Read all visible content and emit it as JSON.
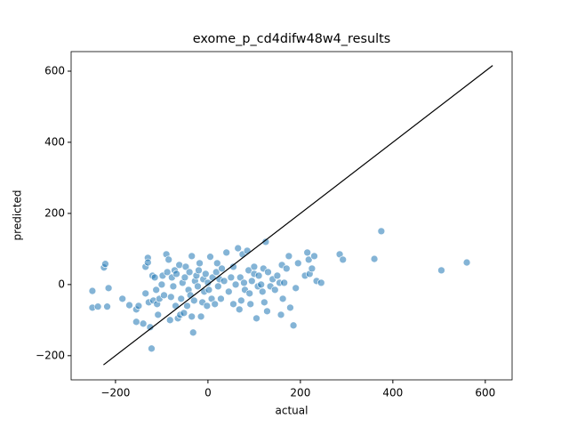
{
  "chart_data": {
    "type": "scatter",
    "title": "exome_p_cd4difw48w4_results",
    "xlabel": "actual",
    "ylabel": "predicted",
    "color": "#1f77b4",
    "x": [
      -250,
      -250,
      -238,
      -225,
      -222,
      -218,
      -215,
      -185,
      -170,
      -155,
      -155,
      -150,
      -140,
      -135,
      -135,
      -130,
      -130,
      -128,
      -125,
      -122,
      -120,
      -118,
      -115,
      -112,
      -110,
      -108,
      -105,
      -100,
      -98,
      -95,
      -90,
      -88,
      -85,
      -82,
      -80,
      -78,
      -75,
      -72,
      -70,
      -68,
      -65,
      -62,
      -60,
      -58,
      -55,
      -52,
      -50,
      -48,
      -45,
      -42,
      -40,
      -38,
      -35,
      -35,
      -32,
      -30,
      -28,
      -25,
      -22,
      -20,
      -18,
      -15,
      -12,
      -10,
      -8,
      -5,
      -2,
      0,
      2,
      5,
      8,
      10,
      15,
      18,
      20,
      22,
      25,
      28,
      30,
      35,
      40,
      45,
      50,
      55,
      55,
      60,
      65,
      68,
      70,
      72,
      75,
      78,
      80,
      85,
      88,
      90,
      92,
      95,
      100,
      100,
      105,
      108,
      110,
      115,
      118,
      120,
      122,
      125,
      128,
      130,
      135,
      140,
      145,
      150,
      155,
      158,
      160,
      162,
      165,
      170,
      175,
      178,
      185,
      190,
      195,
      210,
      215,
      218,
      220,
      225,
      230,
      235,
      245,
      285,
      292,
      360,
      375,
      505,
      560
    ],
    "y": [
      -18,
      -65,
      -62,
      48,
      58,
      -62,
      -10,
      -40,
      -58,
      -70,
      -105,
      -60,
      -110,
      -25,
      50,
      75,
      62,
      -50,
      -120,
      -180,
      25,
      -45,
      20,
      -15,
      -55,
      -85,
      -40,
      0,
      25,
      -30,
      85,
      35,
      70,
      -100,
      -35,
      20,
      -5,
      40,
      -60,
      30,
      -95,
      55,
      -85,
      -40,
      5,
      -80,
      20,
      50,
      -60,
      -15,
      35,
      -30,
      -90,
      80,
      -135,
      -45,
      10,
      25,
      -5,
      40,
      60,
      -90,
      -50,
      15,
      -20,
      30,
      -60,
      5,
      -15,
      78,
      -40,
      20,
      -55,
      35,
      60,
      -5,
      15,
      -40,
      45,
      10,
      90,
      -20,
      20,
      50,
      -55,
      0,
      102,
      -70,
      20,
      -45,
      85,
      5,
      -15,
      95,
      40,
      -25,
      -55,
      10,
      30,
      50,
      -95,
      -5,
      25,
      0,
      -20,
      45,
      -50,
      120,
      -75,
      35,
      -5,
      15,
      -15,
      25,
      5,
      -85,
      55,
      -40,
      5,
      45,
      80,
      -65,
      -115,
      -10,
      60,
      25,
      90,
      70,
      30,
      45,
      80,
      10,
      5,
      85,
      70,
      72,
      150,
      40,
      62
    ],
    "reference_line": {
      "x": [
        -226,
        616
      ],
      "y": [
        -226,
        616
      ],
      "color": "#000000"
    },
    "xlim": [
      -296,
      658
    ],
    "ylim": [
      -268,
      655
    ],
    "xticks": [
      {
        "value": -200,
        "label": "−200"
      },
      0,
      200,
      400,
      600
    ],
    "yticks": [
      {
        "value": -200,
        "label": "−200"
      },
      0,
      200,
      400,
      600
    ]
  }
}
